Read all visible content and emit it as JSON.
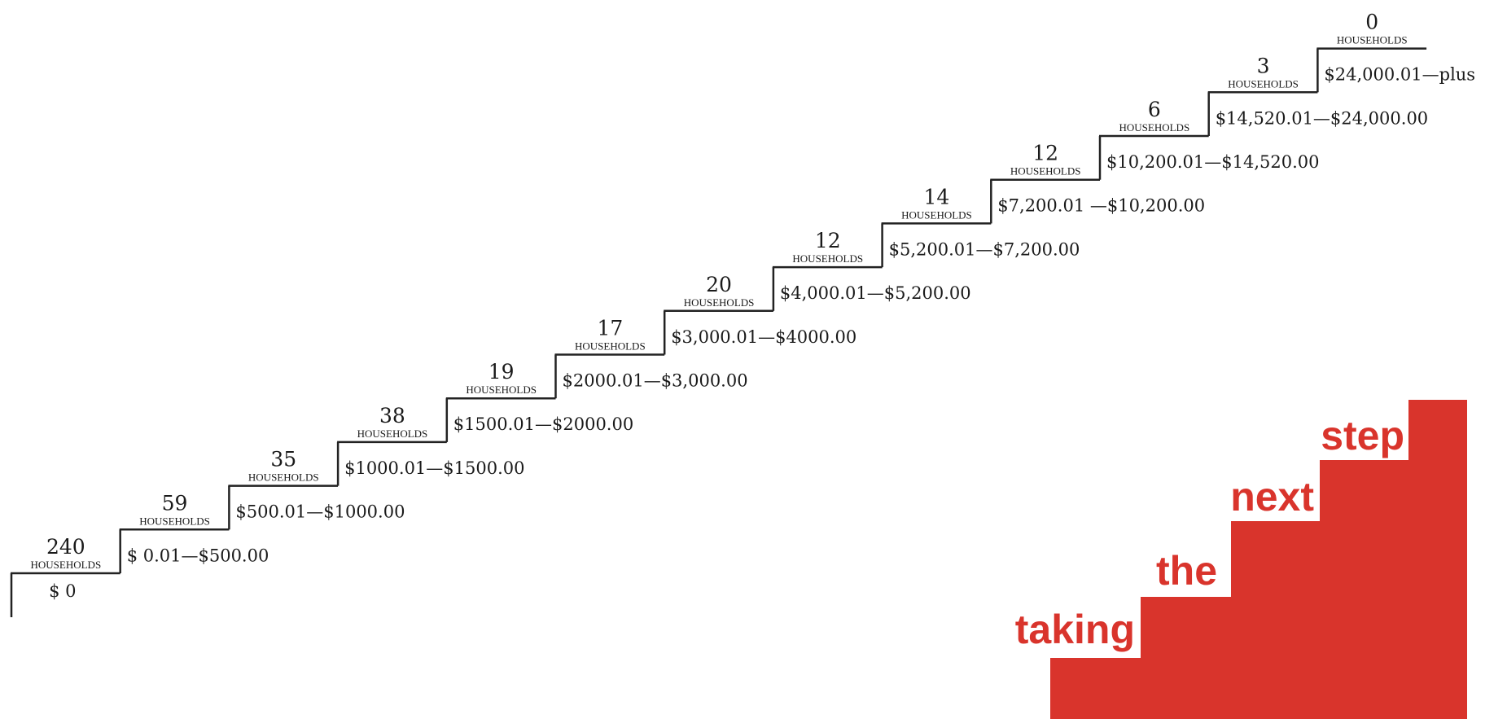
{
  "steps": [
    {
      "count": 240,
      "unit": "HOUSEHOLDS",
      "range": "$ 0"
    },
    {
      "count": 59,
      "unit": "HOUSEHOLDS",
      "range": "$ 0.01—$500.00"
    },
    {
      "count": 35,
      "unit": "HOUSEHOLDS",
      "range": "$500.01—$1000.00"
    },
    {
      "count": 38,
      "unit": "HOUSEHOLDS",
      "range": "$1000.01—$1500.00"
    },
    {
      "count": 19,
      "unit": "HOUSEHOLDS",
      "range": "$1500.01—$2000.00"
    },
    {
      "count": 17,
      "unit": "HOUSEHOLDS",
      "range": "$2000.01—$3,000.00"
    },
    {
      "count": 20,
      "unit": "HOUSEHOLDS",
      "range": "$3,000.01—$4000.00"
    },
    {
      "count": 12,
      "unit": "HOUSEHOLDS",
      "range": "$4,000.01—$5,200.00"
    },
    {
      "count": 14,
      "unit": "HOUSEHOLDS",
      "range": "$5,200.01—$7,200.00"
    },
    {
      "count": 12,
      "unit": "HOUSEHOLDS",
      "range": "$7,200.01 —$10,200.00"
    },
    {
      "count": 6,
      "unit": "HOUSEHOLDS",
      "range": "$10,200.01—$14,520.00"
    },
    {
      "count": 3,
      "unit": "HOUSEHOLDS",
      "range": "$14,520.01—$24,000.00"
    },
    {
      "count": 0,
      "unit": "HOUSEHOLDS",
      "range": "$24,000.01—plus"
    }
  ],
  "logo": {
    "words": [
      "taking",
      "the",
      "next",
      "step"
    ]
  }
}
